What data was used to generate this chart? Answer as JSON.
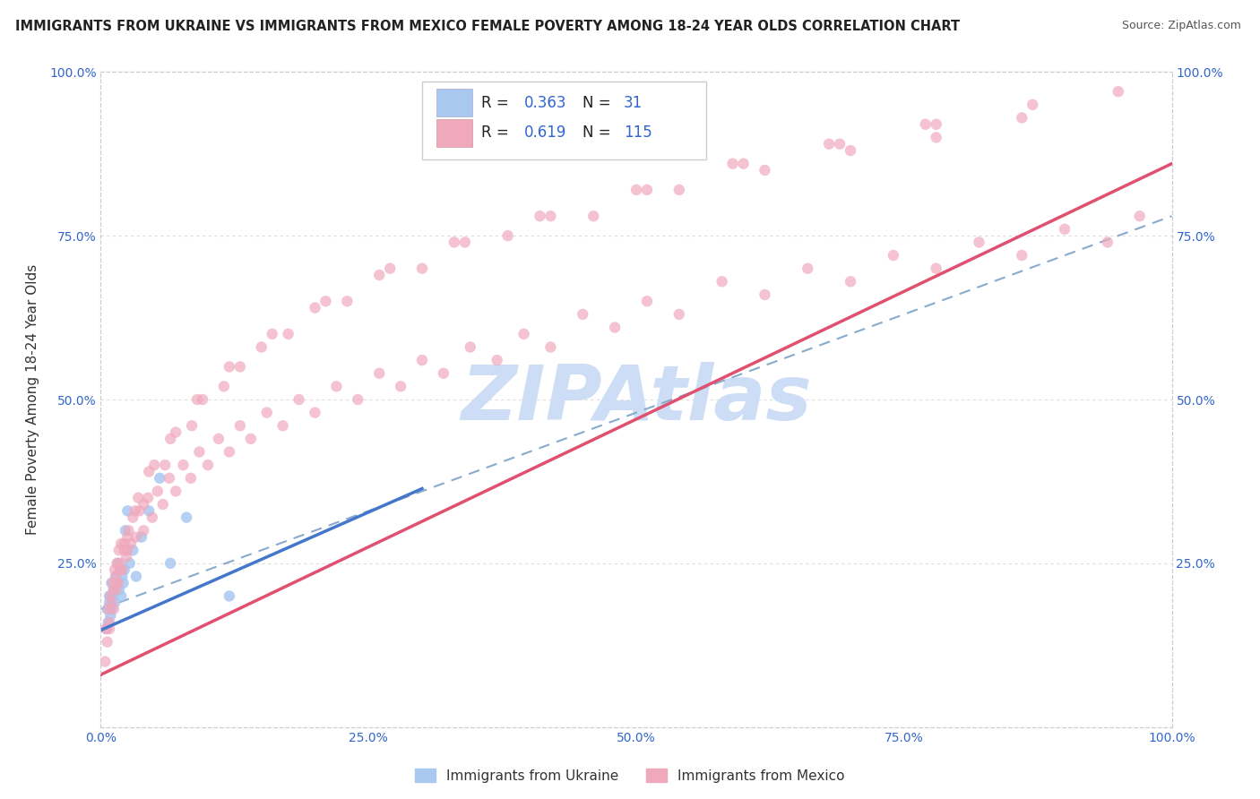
{
  "title": "IMMIGRANTS FROM UKRAINE VS IMMIGRANTS FROM MEXICO FEMALE POVERTY AMONG 18-24 YEAR OLDS CORRELATION CHART",
  "source": "Source: ZipAtlas.com",
  "ylabel": "Female Poverty Among 18-24 Year Olds",
  "legend_ukraine": "Immigrants from Ukraine",
  "legend_mexico": "Immigrants from Mexico",
  "ukraine_R": 0.363,
  "ukraine_N": 31,
  "mexico_R": 0.619,
  "mexico_N": 115,
  "ukraine_color": "#a8c8f0",
  "mexico_color": "#f0a8bc",
  "ukraine_line_color": "#4477cc",
  "mexico_line_color": "#e05070",
  "ukraine_scatter_x": [
    0.005,
    0.006,
    0.007,
    0.008,
    0.008,
    0.009,
    0.01,
    0.01,
    0.011,
    0.012,
    0.013,
    0.014,
    0.015,
    0.016,
    0.017,
    0.018,
    0.019,
    0.02,
    0.021,
    0.022,
    0.023,
    0.025,
    0.027,
    0.03,
    0.033,
    0.038,
    0.045,
    0.055,
    0.065,
    0.08,
    0.12
  ],
  "ukraine_scatter_y": [
    0.15,
    0.18,
    0.16,
    0.19,
    0.2,
    0.17,
    0.18,
    0.22,
    0.2,
    0.21,
    0.19,
    0.23,
    0.22,
    0.25,
    0.21,
    0.24,
    0.2,
    0.23,
    0.22,
    0.24,
    0.3,
    0.33,
    0.25,
    0.27,
    0.23,
    0.29,
    0.33,
    0.38,
    0.25,
    0.32,
    0.2
  ],
  "mexico_scatter_x": [
    0.004,
    0.005,
    0.006,
    0.007,
    0.008,
    0.009,
    0.01,
    0.011,
    0.012,
    0.013,
    0.014,
    0.015,
    0.016,
    0.017,
    0.018,
    0.019,
    0.02,
    0.022,
    0.024,
    0.026,
    0.028,
    0.03,
    0.033,
    0.036,
    0.04,
    0.044,
    0.048,
    0.053,
    0.058,
    0.064,
    0.07,
    0.077,
    0.084,
    0.092,
    0.1,
    0.11,
    0.12,
    0.13,
    0.14,
    0.155,
    0.17,
    0.185,
    0.2,
    0.22,
    0.24,
    0.26,
    0.28,
    0.3,
    0.32,
    0.345,
    0.37,
    0.395,
    0.42,
    0.45,
    0.48,
    0.51,
    0.54,
    0.58,
    0.62,
    0.66,
    0.7,
    0.74,
    0.78,
    0.82,
    0.86,
    0.9,
    0.94,
    0.97,
    0.012,
    0.018,
    0.025,
    0.035,
    0.05,
    0.07,
    0.095,
    0.13,
    0.175,
    0.23,
    0.3,
    0.38,
    0.46,
    0.54,
    0.62,
    0.7,
    0.78,
    0.86,
    0.015,
    0.022,
    0.032,
    0.045,
    0.065,
    0.09,
    0.12,
    0.16,
    0.21,
    0.27,
    0.34,
    0.42,
    0.51,
    0.6,
    0.69,
    0.78,
    0.87,
    0.95,
    0.008,
    0.014,
    0.025,
    0.04,
    0.06,
    0.085,
    0.115,
    0.15,
    0.2,
    0.26,
    0.33,
    0.41,
    0.5,
    0.59,
    0.68,
    0.77
  ],
  "mexico_scatter_y": [
    0.1,
    0.15,
    0.13,
    0.18,
    0.16,
    0.2,
    0.19,
    0.22,
    0.21,
    0.24,
    0.23,
    0.25,
    0.22,
    0.27,
    0.25,
    0.28,
    0.24,
    0.27,
    0.26,
    0.3,
    0.28,
    0.32,
    0.29,
    0.33,
    0.3,
    0.35,
    0.32,
    0.36,
    0.34,
    0.38,
    0.36,
    0.4,
    0.38,
    0.42,
    0.4,
    0.44,
    0.42,
    0.46,
    0.44,
    0.48,
    0.46,
    0.5,
    0.48,
    0.52,
    0.5,
    0.54,
    0.52,
    0.56,
    0.54,
    0.58,
    0.56,
    0.6,
    0.58,
    0.63,
    0.61,
    0.65,
    0.63,
    0.68,
    0.66,
    0.7,
    0.68,
    0.72,
    0.7,
    0.74,
    0.72,
    0.76,
    0.74,
    0.78,
    0.18,
    0.24,
    0.29,
    0.35,
    0.4,
    0.45,
    0.5,
    0.55,
    0.6,
    0.65,
    0.7,
    0.75,
    0.78,
    0.82,
    0.85,
    0.88,
    0.9,
    0.93,
    0.22,
    0.28,
    0.33,
    0.39,
    0.44,
    0.5,
    0.55,
    0.6,
    0.65,
    0.7,
    0.74,
    0.78,
    0.82,
    0.86,
    0.89,
    0.92,
    0.95,
    0.97,
    0.15,
    0.21,
    0.27,
    0.34,
    0.4,
    0.46,
    0.52,
    0.58,
    0.64,
    0.69,
    0.74,
    0.78,
    0.82,
    0.86,
    0.89,
    0.92
  ],
  "xlim": [
    0.0,
    1.0
  ],
  "ylim": [
    0.0,
    1.0
  ],
  "xticks": [
    0.0,
    0.25,
    0.5,
    0.75,
    1.0
  ],
  "yticks": [
    0.25,
    0.5,
    0.75,
    1.0
  ],
  "xtick_labels": [
    "0.0%",
    "25.0%",
    "50.0%",
    "75.0%",
    "100.0%"
  ],
  "left_ytick_labels": [
    "25.0%",
    "50.0%",
    "75.0%",
    "100.0%"
  ],
  "right_ytick_labels": [
    "25.0%",
    "50.0%",
    "75.0%",
    "100.0%"
  ],
  "background_color": "#ffffff",
  "watermark_text": "ZIPAtlas",
  "watermark_color": "#ccddf5",
  "dashed_line_color": "#88aacc",
  "ukraine_line_intercept": 0.148,
  "ukraine_line_slope": 0.72,
  "mexico_line_intercept": 0.08,
  "mexico_line_slope": 0.78,
  "dashed_line_intercept": 0.18,
  "dashed_line_slope": 0.6
}
